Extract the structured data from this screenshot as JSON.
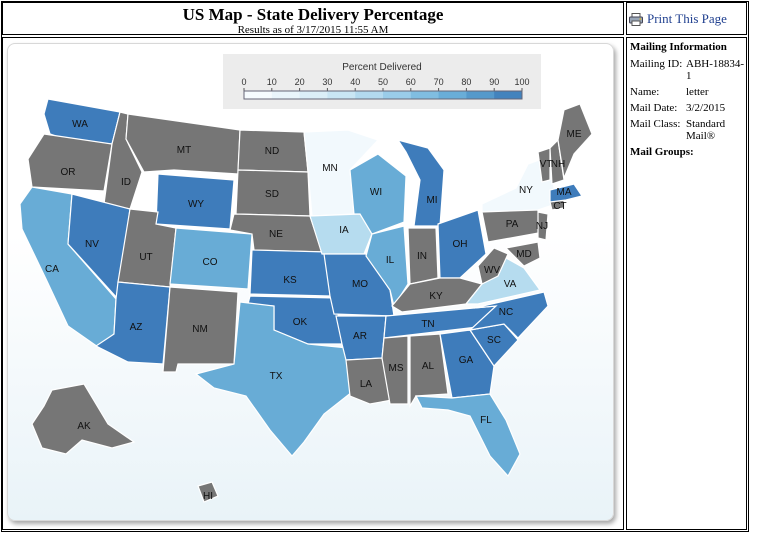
{
  "header": {
    "title": "US Map - State Delivery Percentage",
    "subtitle": "Results as of 3/17/2015 11:55 AM"
  },
  "print": {
    "label": "Print This Page",
    "icon": "printer-icon"
  },
  "info": {
    "heading": "Mailing Information",
    "rows": [
      {
        "label": "Mailing ID:",
        "value": "ABH-18834-1"
      },
      {
        "label": "Name:",
        "value": "letter"
      },
      {
        "label": "Mail Date:",
        "value": "3/2/2015"
      },
      {
        "label": "Mail Class:",
        "value": "Standard Mail®"
      }
    ],
    "groups_label": "Mail Groups:"
  },
  "legend": {
    "title": "Percent Delivered",
    "ticks": [
      "0",
      "10",
      "20",
      "30",
      "40",
      "50",
      "60",
      "70",
      "80",
      "90",
      "100"
    ]
  },
  "colors": {
    "no_data": "#767676",
    "light": "#f2f9fd",
    "pale": "#b6dcef",
    "medium": "#68acd6",
    "strong": "#3e7cbb",
    "border": "#ffffff"
  },
  "states": [
    {
      "code": "WA",
      "shade": "strong"
    },
    {
      "code": "OR",
      "shade": "no_data"
    },
    {
      "code": "CA",
      "shade": "medium"
    },
    {
      "code": "ID",
      "shade": "no_data"
    },
    {
      "code": "NV",
      "shade": "strong"
    },
    {
      "code": "MT",
      "shade": "no_data"
    },
    {
      "code": "WY",
      "shade": "strong"
    },
    {
      "code": "UT",
      "shade": "no_data"
    },
    {
      "code": "AZ",
      "shade": "strong"
    },
    {
      "code": "CO",
      "shade": "medium"
    },
    {
      "code": "NM",
      "shade": "no_data"
    },
    {
      "code": "ND",
      "shade": "no_data"
    },
    {
      "code": "SD",
      "shade": "no_data"
    },
    {
      "code": "NE",
      "shade": "no_data"
    },
    {
      "code": "KS",
      "shade": "strong"
    },
    {
      "code": "OK",
      "shade": "strong"
    },
    {
      "code": "TX",
      "shade": "medium"
    },
    {
      "code": "MN",
      "shade": "light"
    },
    {
      "code": "IA",
      "shade": "pale"
    },
    {
      "code": "MO",
      "shade": "strong"
    },
    {
      "code": "AR",
      "shade": "strong"
    },
    {
      "code": "LA",
      "shade": "no_data"
    },
    {
      "code": "WI",
      "shade": "medium"
    },
    {
      "code": "IL",
      "shade": "medium"
    },
    {
      "code": "MI",
      "shade": "strong"
    },
    {
      "code": "IN",
      "shade": "no_data"
    },
    {
      "code": "OH",
      "shade": "strong"
    },
    {
      "code": "KY",
      "shade": "no_data"
    },
    {
      "code": "TN",
      "shade": "strong"
    },
    {
      "code": "MS",
      "shade": "no_data"
    },
    {
      "code": "AL",
      "shade": "no_data"
    },
    {
      "code": "GA",
      "shade": "strong"
    },
    {
      "code": "FL",
      "shade": "medium"
    },
    {
      "code": "SC",
      "shade": "strong"
    },
    {
      "code": "NC",
      "shade": "strong"
    },
    {
      "code": "VA",
      "shade": "pale"
    },
    {
      "code": "WV",
      "shade": "no_data"
    },
    {
      "code": "MD",
      "shade": "no_data"
    },
    {
      "code": "PA",
      "shade": "no_data"
    },
    {
      "code": "NJ",
      "shade": "no_data"
    },
    {
      "code": "NY",
      "shade": "light"
    },
    {
      "code": "CT",
      "shade": "no_data"
    },
    {
      "code": "MA",
      "shade": "strong"
    },
    {
      "code": "VT",
      "shade": "no_data"
    },
    {
      "code": "NH",
      "shade": "no_data"
    },
    {
      "code": "ME",
      "shade": "no_data"
    },
    {
      "code": "AK",
      "shade": "no_data"
    },
    {
      "code": "HI",
      "shade": "no_data"
    }
  ]
}
